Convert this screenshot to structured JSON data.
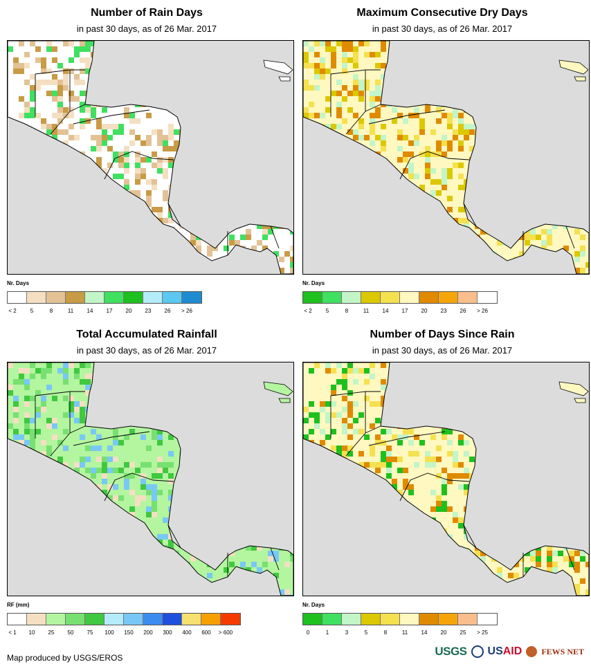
{
  "panels": [
    {
      "title": "Number of Rain Days",
      "subtitle": "in past 30 days, as of 26 Mar. 2017",
      "legend_title": "Nr. Days",
      "legend_colors": [
        "#ffffff",
        "#f5dfc2",
        "#e2c295",
        "#c89b45",
        "#c2f5c8",
        "#40e060",
        "#1ec01e",
        "#b6ecfa",
        "#5ac8f0",
        "#1e8cd0"
      ],
      "legend_labels": [
        "< 2",
        "5",
        "8",
        "11",
        "14",
        "17",
        "20",
        "23",
        "26",
        "> 26"
      ],
      "land_color": "#ffffff",
      "accent_colors": [
        "#f5dfc2",
        "#e2c295",
        "#c89b45",
        "#40e060"
      ]
    },
    {
      "title": "Maximum Consecutive Dry Days",
      "subtitle": "in past 30 days, as of 26 Mar. 2017",
      "legend_title": "Nr. Days",
      "legend_colors": [
        "#1ec01e",
        "#40e060",
        "#c2f5c8",
        "#dcc800",
        "#f5e050",
        "#fff8c0",
        "#e08a00",
        "#f5a50a",
        "#fabe8c",
        "#ffffff"
      ],
      "legend_labels": [
        "< 2",
        "5",
        "8",
        "11",
        "14",
        "17",
        "20",
        "23",
        "26",
        "> 26"
      ],
      "land_color": "#fff8c0",
      "accent_colors": [
        "#f5e050",
        "#dcc800",
        "#e08a00",
        "#c2f5c8"
      ]
    },
    {
      "title": "Total Accumulated Rainfall",
      "subtitle": "in past 30 days, as of 26 Mar. 2017",
      "legend_title": "RF (mm)",
      "legend_colors": [
        "#ffffff",
        "#f5dfc2",
        "#b4f5a0",
        "#78e070",
        "#40c840",
        "#b4ecfa",
        "#78c8f5",
        "#3c8cf0",
        "#1e50dc",
        "#f5e070",
        "#f5a000",
        "#f53c00"
      ],
      "legend_labels": [
        "< 1",
        "10",
        "25",
        "50",
        "75",
        "100",
        "150",
        "200",
        "300",
        "400",
        "600",
        "> 600"
      ],
      "land_color": "#b4f5a0",
      "accent_colors": [
        "#78e070",
        "#40c840",
        "#f5dfc2",
        "#78c8f5"
      ]
    },
    {
      "title": "Number of Days Since Rain",
      "subtitle": "in past 30 days, as of 26 Mar. 2017",
      "legend_title": "Nr. Days",
      "legend_colors": [
        "#1ec01e",
        "#40e060",
        "#c2f5c8",
        "#dcc800",
        "#f5e050",
        "#fff8c0",
        "#e08a00",
        "#f5a50a",
        "#fabe8c",
        "#ffffff"
      ],
      "legend_labels": [
        "0",
        "1",
        "3",
        "5",
        "8",
        "11",
        "14",
        "20",
        "25",
        "> 25"
      ],
      "land_color": "#fff8c0",
      "accent_colors": [
        "#e08a00",
        "#f5e050",
        "#c2f5c8",
        "#1ec01e"
      ]
    }
  ],
  "footer": {
    "credit": "Map produced by USGS/EROS",
    "logo_usgs": "USGS",
    "logo_usaid_prefix": "US",
    "logo_usaid_suffix": "AID",
    "logo_fews": "FEWS NET"
  },
  "map": {
    "ocean_color": "#dcdcdc",
    "border_color": "#000000"
  }
}
